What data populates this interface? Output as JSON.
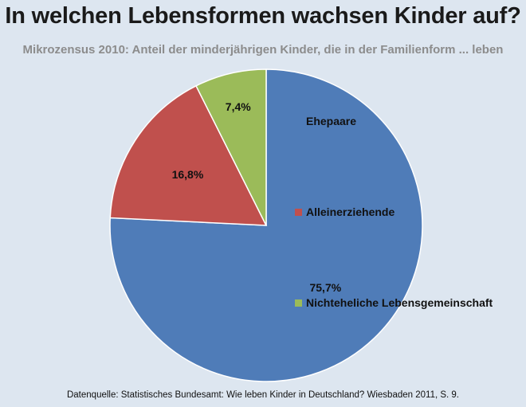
{
  "title": "In welchen Lebensformen wachsen Kinder auf?",
  "subtitle": "Mikrozensus 2010: Anteil der minderjährigen Kinder, die in der Familienform ... leben",
  "source": "Datenquelle: Statistisches Bundesamt: Wie leben Kinder in Deutschland? Wiesbaden 2011, S. 9.",
  "chart_data": {
    "type": "pie",
    "title": "In welchen Lebensformen wachsen Kinder auf?",
    "subtitle": "Mikrozensus 2010: Anteil der minderjährigen Kinder, die in der Familienform ... leben",
    "start_angle": "12 o'clock, clockwise",
    "legend_position": "right",
    "slices": [
      {
        "label": "Ehepaare",
        "value": 75.7,
        "display": "75,7%",
        "color": "#4f7cb8"
      },
      {
        "label": "Alleinerziehende",
        "value": 16.8,
        "display": "16,8%",
        "color": "#c0504d"
      },
      {
        "label": "Nichteheliche Lebensgemeinschaft",
        "value": 7.4,
        "display": "7,4%",
        "color": "#9bbb59"
      }
    ]
  }
}
